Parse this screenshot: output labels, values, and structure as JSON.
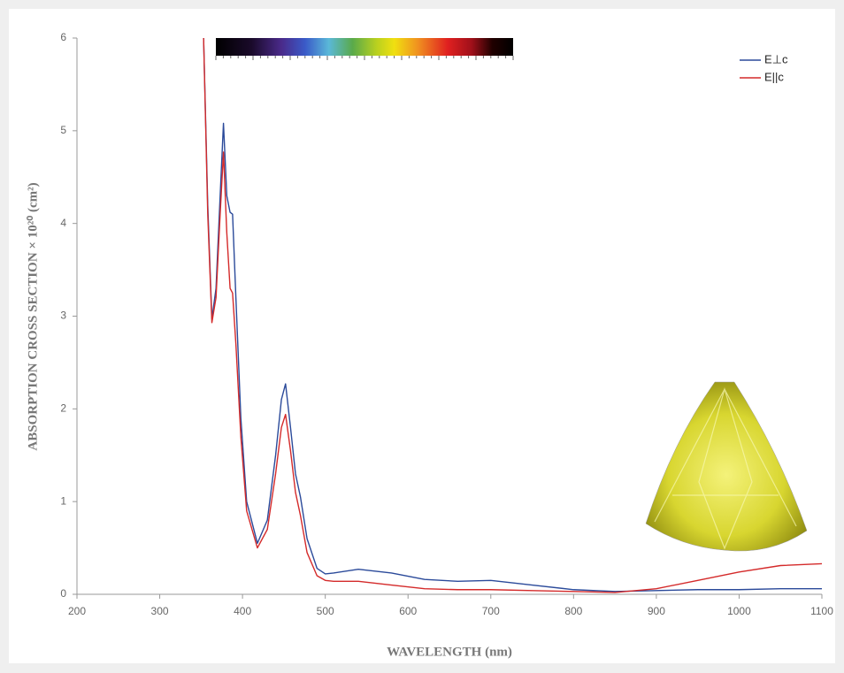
{
  "chart_data": {
    "type": "line",
    "x_label": "WAVELENGTH (nm)",
    "y_label": "ABSORPTION CROSS SECTION × 10²⁰ (cm²)",
    "x": [
      353,
      358,
      363,
      368,
      373,
      377,
      381,
      385,
      388,
      392,
      398,
      405,
      418,
      430,
      440,
      447,
      452,
      458,
      464,
      470,
      478,
      490,
      500,
      510,
      540,
      580,
      620,
      660,
      700,
      750,
      800,
      850,
      900,
      950,
      1000,
      1050,
      1100
    ],
    "series": [
      {
        "name": "E⊥c",
        "color": "#2b4a9a",
        "values": [
          6.0,
          4.2,
          2.97,
          3.3,
          4.3,
          5.08,
          4.3,
          4.12,
          4.1,
          3.2,
          1.9,
          1.0,
          0.55,
          0.8,
          1.5,
          2.1,
          2.27,
          1.8,
          1.3,
          1.05,
          0.6,
          0.28,
          0.22,
          0.23,
          0.27,
          0.23,
          0.16,
          0.14,
          0.15,
          0.1,
          0.05,
          0.03,
          0.04,
          0.05,
          0.05,
          0.06,
          0.06
        ]
      },
      {
        "name": "E||c",
        "color": "#d42a2a",
        "values": [
          6.0,
          4.1,
          2.93,
          3.2,
          4.1,
          4.77,
          3.9,
          3.3,
          3.25,
          2.7,
          1.7,
          0.9,
          0.5,
          0.7,
          1.3,
          1.8,
          1.94,
          1.55,
          1.1,
          0.85,
          0.45,
          0.2,
          0.15,
          0.14,
          0.14,
          0.1,
          0.06,
          0.05,
          0.05,
          0.04,
          0.03,
          0.02,
          0.06,
          0.15,
          0.24,
          0.31,
          0.33
        ]
      }
    ],
    "xlim": [
      200,
      1100
    ],
    "xticks": [
      200,
      300,
      400,
      500,
      600,
      700,
      800,
      900,
      1000,
      1100
    ],
    "ylim": [
      0,
      6
    ],
    "yticks": [
      0,
      1,
      2,
      3,
      4,
      5,
      6
    ],
    "legend": "top-right"
  }
}
